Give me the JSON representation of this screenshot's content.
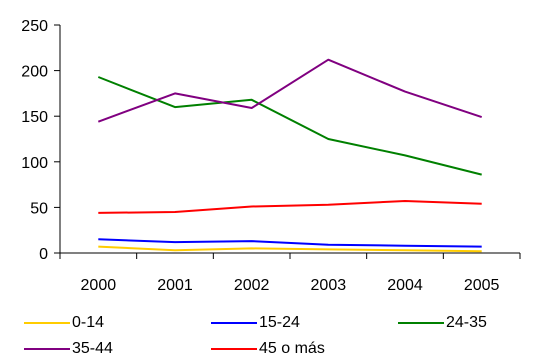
{
  "chart_data": {
    "type": "line",
    "title": "",
    "xlabel": "",
    "ylabel": "",
    "categories": [
      "2000",
      "2001",
      "2002",
      "2003",
      "2004",
      "2005"
    ],
    "ylim": [
      0,
      250
    ],
    "yticks": [
      "0",
      "50",
      "100",
      "150",
      "200",
      "250"
    ],
    "grid": false,
    "legend_position": "bottom",
    "series": [
      {
        "name": "0-14",
        "color": "#FFCC00",
        "values": [
          7,
          3,
          5,
          4,
          3,
          2
        ]
      },
      {
        "name": "15-24",
        "color": "#0000FF",
        "values": [
          15,
          12,
          13,
          9,
          8,
          7
        ]
      },
      {
        "name": "24-35",
        "color": "#008000",
        "values": [
          193,
          160,
          168,
          125,
          107,
          86
        ]
      },
      {
        "name": "35-44",
        "color": "#800080",
        "values": [
          144,
          175,
          159,
          212,
          177,
          149
        ]
      },
      {
        "name": "45 o más",
        "color": "#FF0000",
        "values": [
          44,
          45,
          51,
          53,
          57,
          54
        ]
      }
    ]
  }
}
